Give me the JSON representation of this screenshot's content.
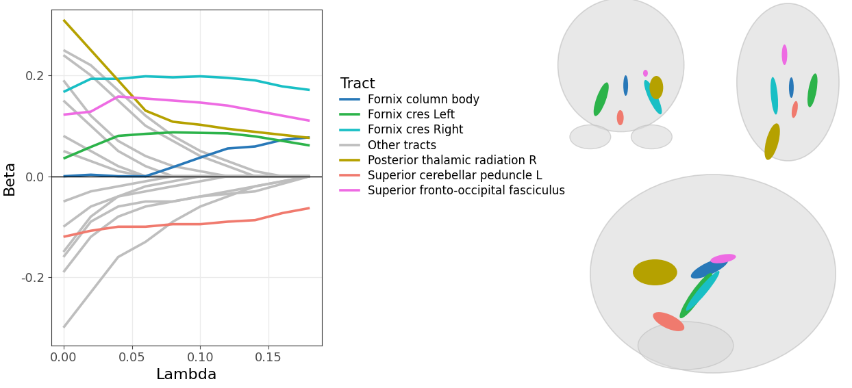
{
  "chart_data": {
    "type": "line",
    "xlabel": "Lambda",
    "ylabel": "Beta",
    "x": [
      0.0,
      0.02,
      0.04,
      0.06,
      0.08,
      0.1,
      0.12,
      0.14,
      0.16,
      0.18
    ],
    "xlim": [
      -0.009,
      0.189
    ],
    "xticks": [
      {
        "value": 0,
        "label": "0.00"
      },
      {
        "value": 0.05,
        "label": "0.05"
      },
      {
        "value": 0.1,
        "label": "0.10"
      },
      {
        "value": 0.15,
        "label": "0.15"
      }
    ],
    "ylim": [
      -0.335,
      0.33
    ],
    "yticks": [
      -0.2,
      {
        "value": 0,
        "label": "0.0"
      },
      0.2
    ],
    "grid": true,
    "legend": "right",
    "legend_title": "Tract",
    "series": [
      {
        "name": "Fornix column body",
        "color": "#2878B8",
        "values": [
          0.0,
          0.003,
          0.0,
          0.0,
          0.018,
          0.037,
          0.055,
          0.059,
          0.072,
          0.077
        ]
      },
      {
        "name": "Fornix cres Left",
        "color": "#2CB34A",
        "values": [
          0.035,
          0.058,
          0.08,
          0.084,
          0.087,
          0.086,
          0.085,
          0.079,
          0.07,
          0.061
        ]
      },
      {
        "name": "Fornix cres Right",
        "color": "#19BFC5",
        "values": [
          0.167,
          0.193,
          0.193,
          0.198,
          0.196,
          0.198,
          0.195,
          0.19,
          0.178,
          0.171
        ]
      },
      {
        "name": "Other tracts",
        "color": "#BEBEBE",
        "values": [
          0.25,
          0.22,
          0.17,
          0.12,
          0.08,
          0.05,
          0.03,
          0.01,
          0.0,
          0.0
        ]
      },
      {
        "name": "Other tracts",
        "color": "#BEBEBE",
        "values": [
          0.24,
          0.2,
          0.15,
          0.1,
          0.07,
          0.04,
          0.02,
          0.0,
          0.0,
          0.0
        ]
      },
      {
        "name": "Other tracts",
        "color": "#BEBEBE",
        "values": [
          0.19,
          0.12,
          0.07,
          0.04,
          0.02,
          0.01,
          0.0,
          0.0,
          0.0,
          0.0
        ]
      },
      {
        "name": "Other tracts",
        "color": "#BEBEBE",
        "values": [
          0.15,
          0.1,
          0.05,
          0.02,
          0.0,
          0.0,
          0.0,
          0.0,
          0.0,
          0.0
        ]
      },
      {
        "name": "Other tracts",
        "color": "#BEBEBE",
        "values": [
          0.08,
          0.05,
          0.02,
          0.0,
          0.0,
          0.0,
          0.0,
          0.0,
          0.0,
          0.0
        ]
      },
      {
        "name": "Other tracts",
        "color": "#BEBEBE",
        "values": [
          0.05,
          0.03,
          0.01,
          0.0,
          0.0,
          0.0,
          0.0,
          0.0,
          0.0,
          0.0
        ]
      },
      {
        "name": "Other tracts",
        "color": "#BEBEBE",
        "values": [
          -0.3,
          -0.23,
          -0.16,
          -0.13,
          -0.09,
          -0.06,
          -0.04,
          -0.02,
          -0.01,
          0.0
        ]
      },
      {
        "name": "Other tracts",
        "color": "#BEBEBE",
        "values": [
          -0.19,
          -0.12,
          -0.08,
          -0.06,
          -0.05,
          -0.04,
          -0.03,
          -0.02,
          -0.01,
          0.0
        ]
      },
      {
        "name": "Other tracts",
        "color": "#BEBEBE",
        "values": [
          -0.16,
          -0.09,
          -0.06,
          -0.05,
          -0.05,
          -0.04,
          -0.035,
          -0.03,
          -0.015,
          0.0
        ]
      },
      {
        "name": "Other tracts",
        "color": "#BEBEBE",
        "values": [
          -0.1,
          -0.06,
          -0.04,
          -0.03,
          -0.02,
          -0.01,
          0.0,
          0.0,
          0.0,
          0.0
        ]
      },
      {
        "name": "Other tracts",
        "color": "#BEBEBE",
        "values": [
          -0.05,
          -0.03,
          -0.02,
          -0.01,
          0.0,
          0.0,
          0.0,
          0.0,
          0.0,
          0.0
        ]
      },
      {
        "name": "Other tracts",
        "color": "#BEBEBE",
        "values": [
          -0.15,
          -0.08,
          -0.04,
          -0.02,
          -0.01,
          0.0,
          0.0,
          0.0,
          0.0,
          0.0
        ]
      },
      {
        "name": "Posterior thalamic radiation R",
        "color": "#B5A100",
        "values": [
          0.31,
          0.25,
          0.19,
          0.13,
          0.108,
          0.102,
          0.094,
          0.088,
          0.082,
          0.076
        ]
      },
      {
        "name": "Superior cerebellar peduncle L",
        "color": "#F07A6E",
        "values": [
          -0.12,
          -0.108,
          -0.1,
          -0.1,
          -0.095,
          -0.095,
          -0.09,
          -0.087,
          -0.073,
          -0.063
        ]
      },
      {
        "name": "Superior fronto-occipital fasciculus",
        "color": "#EE6BE3",
        "values": [
          0.122,
          0.128,
          0.158,
          0.154,
          0.15,
          0.146,
          0.14,
          0.13,
          0.12,
          0.11
        ]
      }
    ]
  }
}
